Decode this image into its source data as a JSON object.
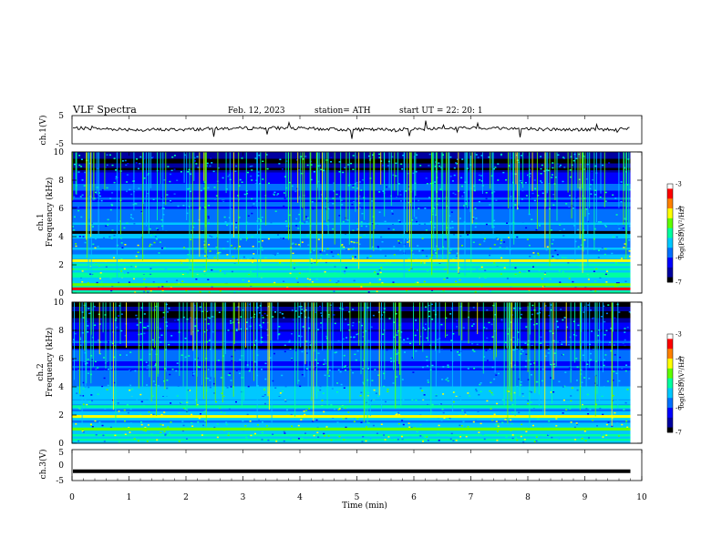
{
  "header": {
    "title": "VLF  Spectra",
    "date": "Feb. 12, 2023",
    "station": "station= ATH",
    "start": "start  UT  =    22: 20: 1"
  },
  "chart_data": [
    {
      "type": "line",
      "panel": "ch1-waveform",
      "ylabel": "ch.1(V)",
      "ylim": [
        -5,
        5
      ],
      "yticks": [
        "5",
        "-5"
      ],
      "series": [
        {
          "values_approx": "noisy trace around 0 V with occasional spikes"
        }
      ]
    },
    {
      "type": "heatmap",
      "panel": "ch1-spectrogram",
      "ylabel_channel": "ch.1",
      "ylabel": "Frequency  (kHz)",
      "ylim": [
        0,
        10
      ],
      "yticks": [
        "0",
        "2",
        "4",
        "6",
        "8",
        "10"
      ],
      "xlim": [
        0,
        10
      ],
      "colorbar": {
        "label": "log(PSD)(V²/Hz)",
        "range": [
          -7,
          -3
        ],
        "ticks": [
          "-3",
          "-4",
          "-5",
          "-6",
          "-7"
        ]
      },
      "bands_khz": [
        {
          "f": 0.3,
          "level": -3.6
        },
        {
          "f": 0.6,
          "level": -4.4
        },
        {
          "f": 1.2,
          "level": -5.1
        },
        {
          "f": 2.0,
          "level": -4.9
        },
        {
          "f": 2.3,
          "level": -4.3
        },
        {
          "f": 4.3,
          "level": -6.9
        }
      ]
    },
    {
      "type": "heatmap",
      "panel": "ch2-spectrogram",
      "ylabel_channel": "ch.2",
      "ylabel": "Frequency  (kHz)",
      "ylim": [
        0,
        10
      ],
      "yticks": [
        "0",
        "2",
        "4",
        "6",
        "8",
        "10"
      ],
      "xlim": [
        0,
        10
      ],
      "colorbar": {
        "label": "log(PSD)(V²/Hz)",
        "range": [
          -7,
          -3
        ],
        "ticks": [
          "-3",
          "-4",
          "-5",
          "-6",
          "-7"
        ]
      },
      "bands_khz": [
        {
          "f": 1.0,
          "level": -4.8
        },
        {
          "f": 1.9,
          "level": -4.2
        },
        {
          "f": 2.6,
          "level": -5.0
        },
        {
          "f": 3.2,
          "level": -5.3
        },
        {
          "f": 6.8,
          "level": -6.9
        }
      ]
    },
    {
      "type": "line",
      "panel": "ch3-waveform",
      "ylabel": "ch.3(V)",
      "ylim": [
        -5,
        5
      ],
      "yticks": [
        "5",
        "0",
        "-5"
      ],
      "series": [
        {
          "values": [
            -2,
            -2
          ]
        }
      ]
    }
  ],
  "xaxis": {
    "label": "Time  (min)",
    "ticks": [
      "0",
      "1",
      "2",
      "3",
      "4",
      "5",
      "6",
      "7",
      "8",
      "9",
      "10"
    ],
    "range": [
      0,
      10
    ],
    "data_end": 9.8
  },
  "colors": {
    "colormap": [
      "#000000",
      "#0000a0",
      "#0000ff",
      "#0070ff",
      "#00c8ff",
      "#00ffa0",
      "#60ff00",
      "#ffff00",
      "#ff8000",
      "#ff0000",
      "#ffffff"
    ]
  }
}
